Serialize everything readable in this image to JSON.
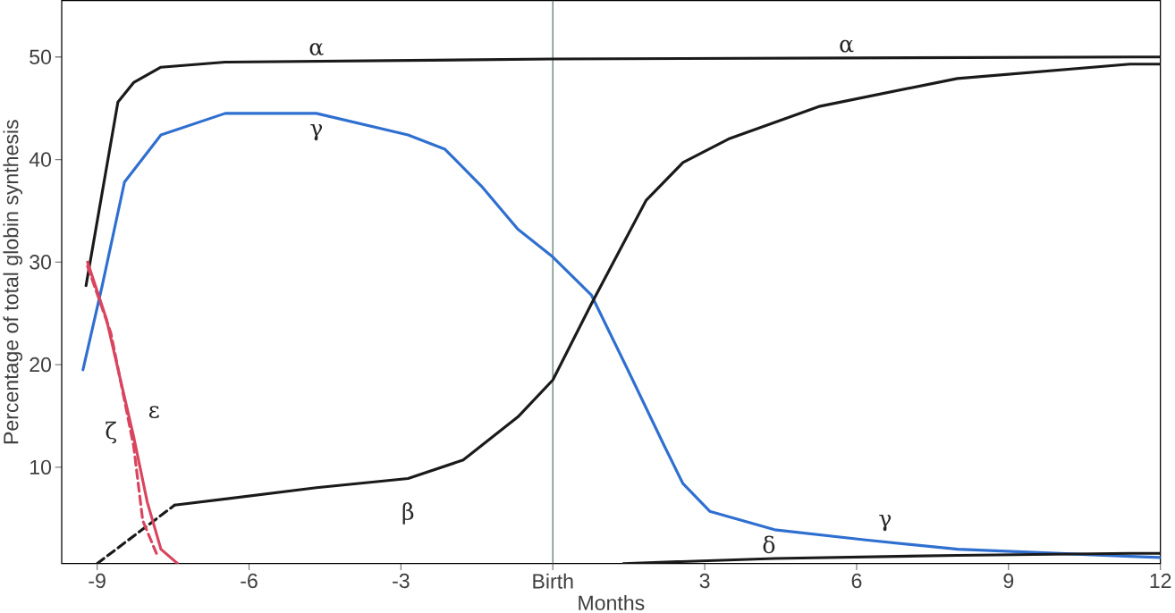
{
  "chart_data": {
    "type": "line",
    "xlabel": "Months",
    "ylabel": "Percentage of total globin synthesis",
    "xlim": [
      -9.7,
      12
    ],
    "ylim": [
      0.6,
      55.5
    ],
    "xticks": [
      -9,
      -6,
      -3,
      {
        "value": 0,
        "label": "Birth"
      },
      3,
      6,
      9,
      12
    ],
    "yticks": [
      10,
      20,
      30,
      40,
      50
    ],
    "marker": "none",
    "series": [
      {
        "color": "#1a1a1a",
        "line_style": "solid",
        "x": [
          -9.22,
          -8.59,
          -8.28,
          -7.74,
          -6.47,
          0,
          11.6,
          12
        ],
        "values": [
          27.7,
          45.6,
          47.5,
          49.0,
          49.5,
          49.8,
          50,
          50
        ]
      },
      {
        "color": "#2f6fd0",
        "line_style": "solid",
        "x": [
          -9.28,
          -8.9,
          -8.46,
          -7.74,
          -6.47,
          -4.67,
          -2.86,
          -2.13,
          -1.41,
          -0.69,
          0,
          0.76,
          1.48,
          2.2,
          2.57,
          3.1,
          4.38,
          6.18,
          8.0,
          11.4,
          12
        ],
        "values": [
          19.5,
          27.7,
          37.8,
          42.4,
          44.5,
          44.5,
          42.4,
          41.0,
          37.4,
          33.2,
          30.5,
          26.8,
          19.5,
          12.1,
          8.4,
          5.7,
          3.9,
          2.9,
          2.0,
          1.3,
          1.2
        ]
      },
      {
        "color": "#1a1a1a",
        "line_style": "dashed",
        "x": [
          -9,
          -7.47
        ],
        "values": [
          0.6,
          6.3
        ]
      },
      {
        "color": "#1a1a1a",
        "line_style": "solid",
        "x": [
          -7.47,
          -4.67,
          -2.86,
          -1.77,
          -0.69,
          0,
          0.76,
          1.84,
          2.57,
          3.47,
          5.28,
          7.99,
          11.4,
          12
        ],
        "values": [
          6.3,
          8.0,
          8.9,
          10.7,
          14.9,
          18.5,
          25.9,
          36,
          39.7,
          42,
          45.2,
          47.9,
          49.3,
          49.3
        ]
      },
      {
        "color": "#d9455f",
        "line_style": "solid",
        "x": [
          -9.19,
          -8.82,
          -8.28,
          -8.01,
          -7.74,
          -7.41
        ],
        "values": [
          30,
          24.5,
          13,
          6.6,
          2.0,
          0.6
        ]
      },
      {
        "color": "#d9455f",
        "line_style": "dashed",
        "x": [
          -9.19,
          -8.73,
          -8.28,
          -8.1,
          -7.83
        ],
        "values": [
          29.6,
          23.1,
          12.1,
          4.8,
          1.6
        ]
      },
      {
        "color": "#1a1a1a",
        "line_style": "solid",
        "x": [
          1.39,
          4.38,
          8.0,
          11.4,
          12
        ],
        "values": [
          0.6,
          1.1,
          1.4,
          1.6,
          1.6
        ]
      }
    ],
    "ref_lines": [
      {
        "axis": "x",
        "value": 0,
        "color": "#5a7a6a"
      }
    ],
    "annotations": [
      {
        "text": "α",
        "x": -4.67,
        "y": 49.6
      },
      {
        "text": "α",
        "x": 5.8,
        "y": 49.9
      },
      {
        "text": "γ",
        "x": -4.67,
        "y": 44.5
      },
      {
        "text": "γ",
        "x": 6.18,
        "y": 2.9
      },
      {
        "text": "β",
        "x": -2.86,
        "y": 8.9
      },
      {
        "text": "ε",
        "x": -8.28,
        "y": 13
      },
      {
        "text": "ζ",
        "x": -8.28,
        "y": 12.1
      },
      {
        "text": "δ",
        "x": 4.38,
        "y": 1.1
      }
    ]
  }
}
